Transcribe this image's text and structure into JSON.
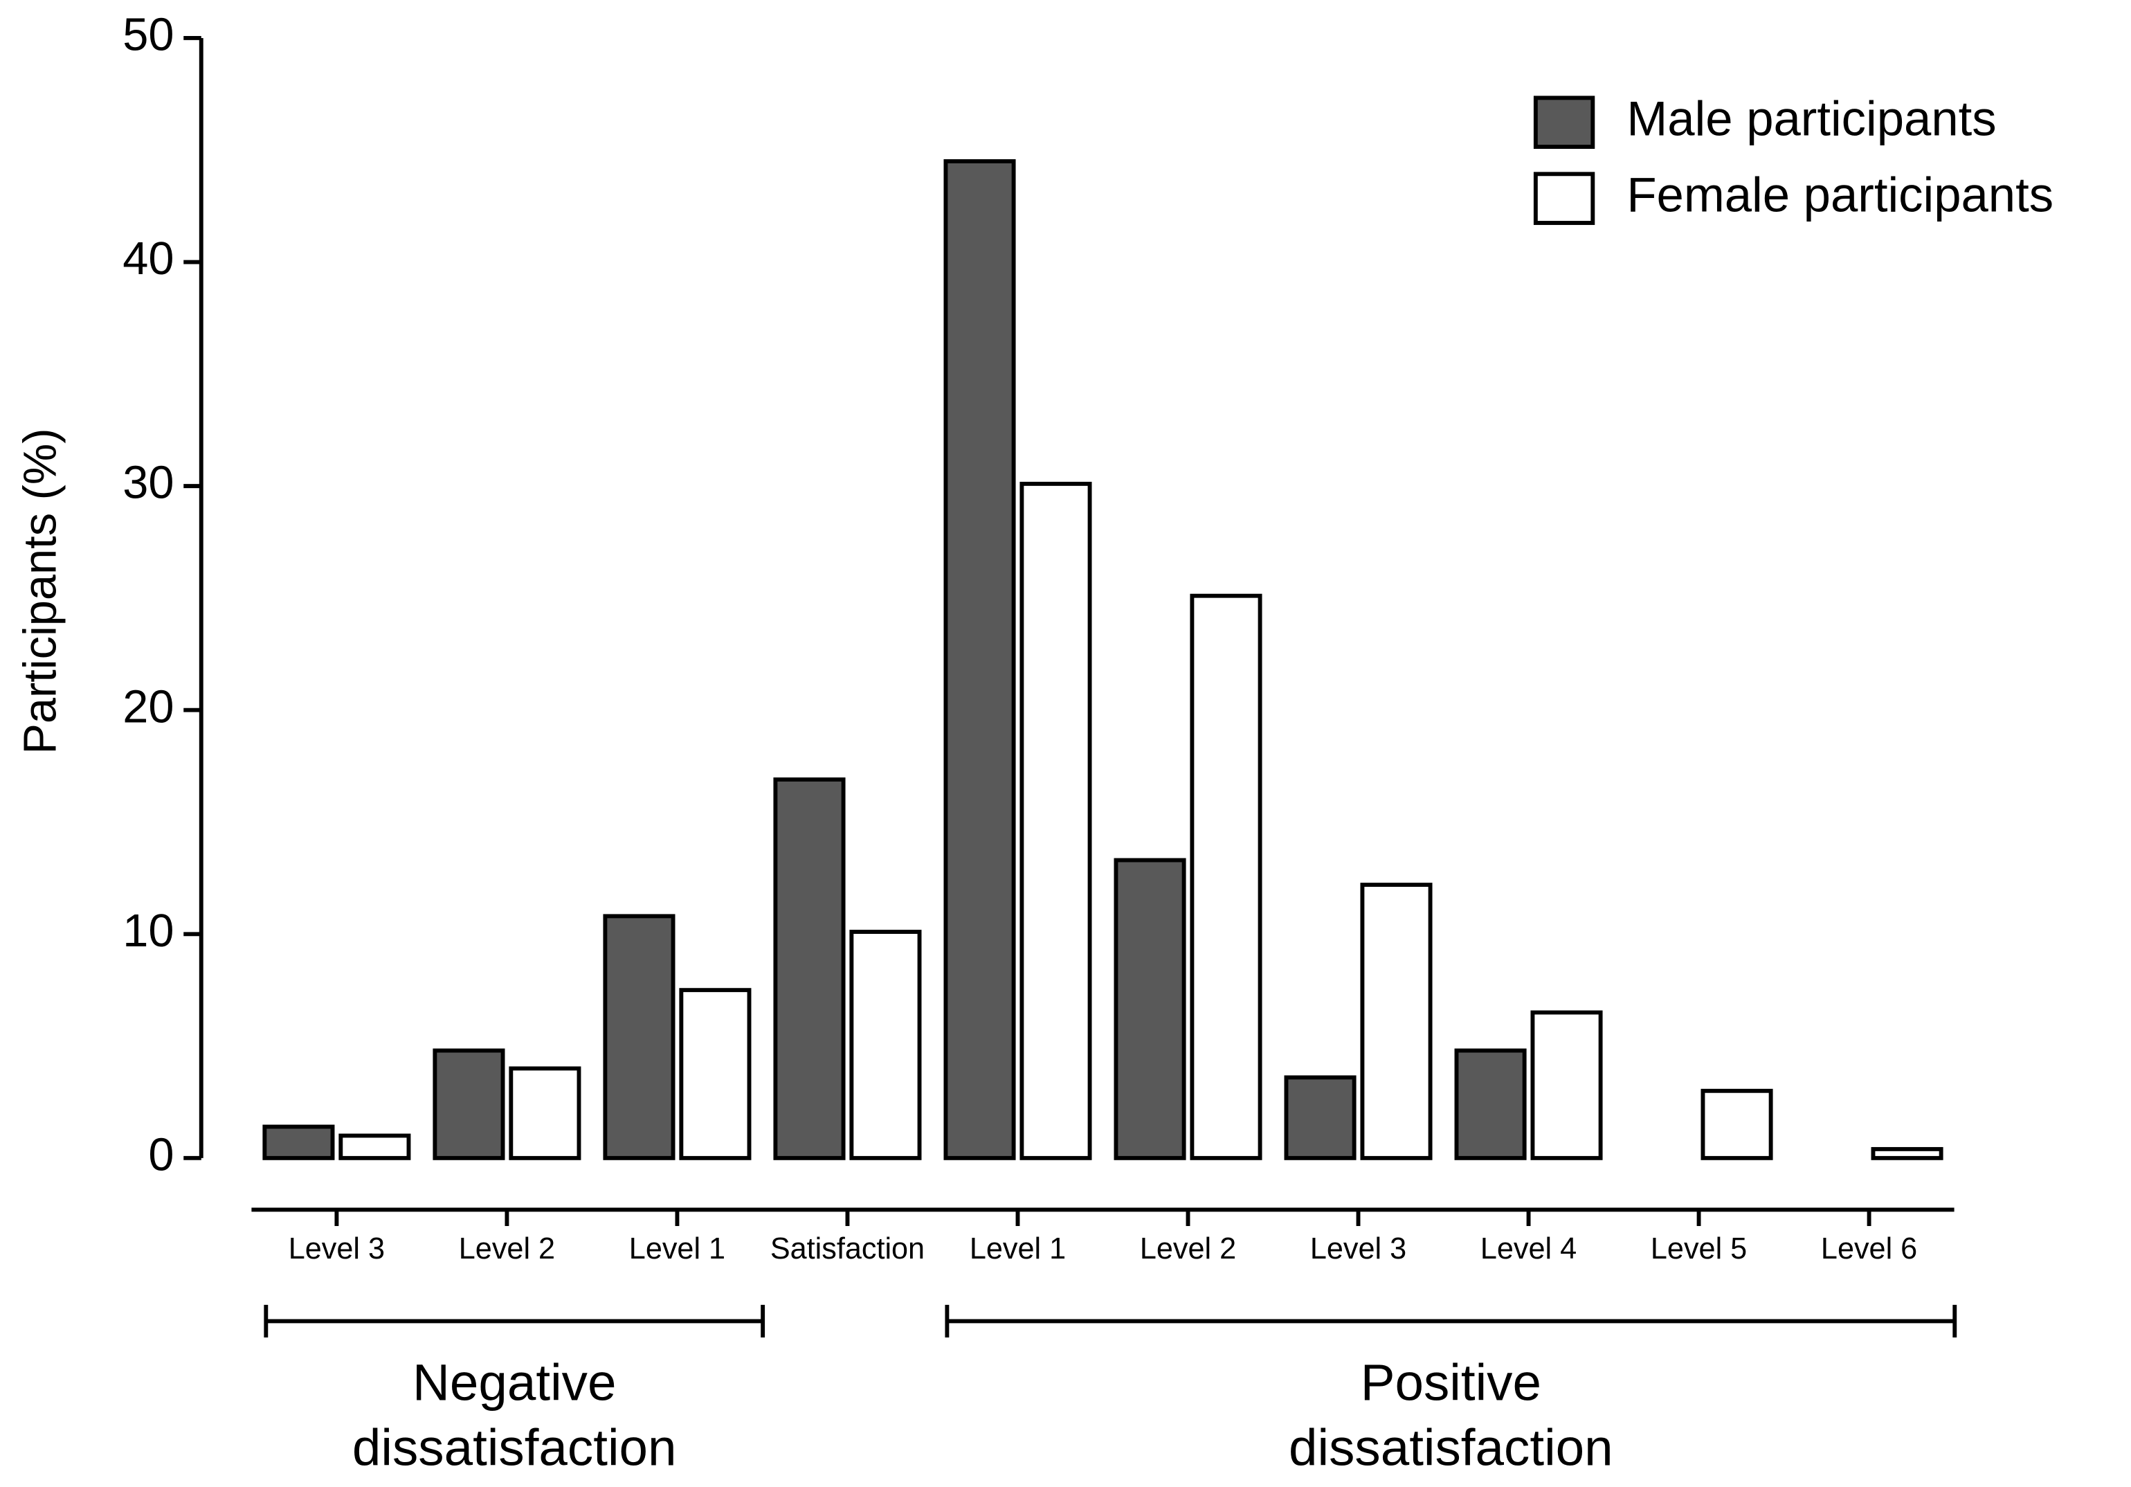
{
  "chart_data": {
    "type": "bar",
    "y_label": "Participants (%)",
    "categories": [
      "Level 3",
      "Level 2",
      "Level 1",
      "Satisfaction",
      "Level 1",
      "Level 2",
      "Level 3",
      "Level 4",
      "Level 5",
      "Level 6"
    ],
    "series": [
      {
        "name": "Male participants",
        "color": "#595959",
        "values": [
          1.4,
          4.8,
          10.8,
          16.9,
          44.5,
          13.3,
          3.6,
          4.8,
          null,
          null
        ]
      },
      {
        "name": "Female participants",
        "color": "#ffffff",
        "values": [
          1.0,
          4.0,
          7.5,
          10.1,
          30.1,
          25.1,
          12.2,
          6.5,
          3.0,
          0.4
        ]
      }
    ],
    "groups": [
      {
        "label": [
          "Negative",
          "dissatisfaction"
        ]
      },
      {
        "label": [
          "Positive",
          "dissatisfaction"
        ]
      }
    ],
    "ylim": [
      0,
      50
    ],
    "yticks": [
      0,
      10,
      20,
      30,
      40,
      50
    ],
    "legend": "top-right"
  }
}
